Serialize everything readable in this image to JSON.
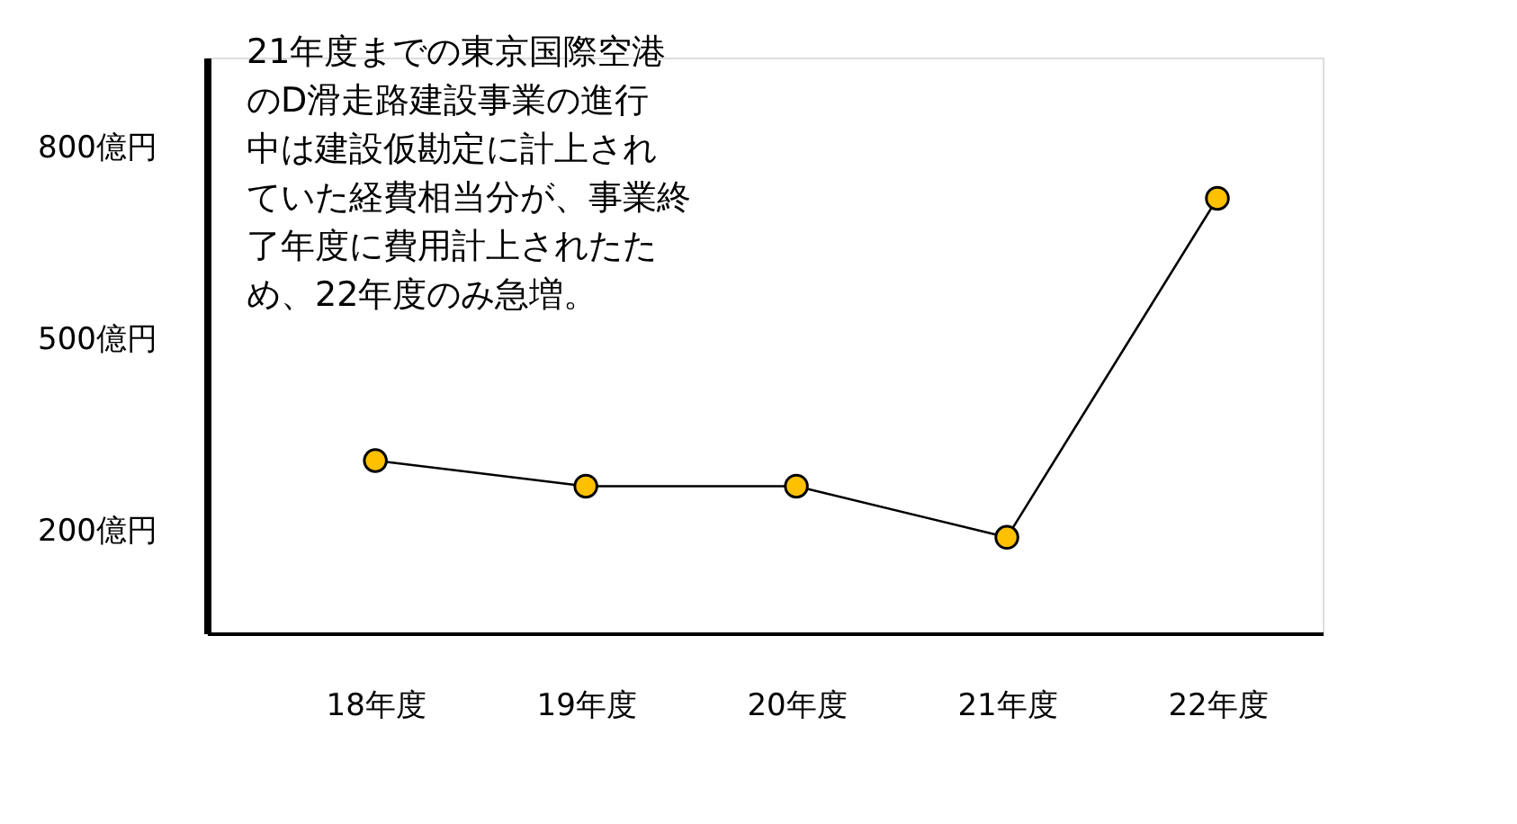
{
  "chart_data": {
    "type": "line",
    "categories": [
      "18年度",
      "19年度",
      "20年度",
      "21年度",
      "22年度"
    ],
    "series": [
      {
        "color": "#ffc000",
        "values": [
          310,
          270,
          270,
          190,
          720
        ]
      }
    ],
    "marker": "circle",
    "ylim": [
      40,
      940
    ],
    "yticks": [
      {
        "value": 200,
        "label": "200億円"
      },
      {
        "value": 500,
        "label": "500億円"
      },
      {
        "value": 800,
        "label": "800億円"
      }
    ],
    "grid": false,
    "annotations": [
      "21年度までの東京国際空港のD滑走路建設事業の進行中は建設仮勘定に計上されていた経費相当分が、事業終了年度に費用計上されたため、22年度のみ急増。"
    ]
  }
}
